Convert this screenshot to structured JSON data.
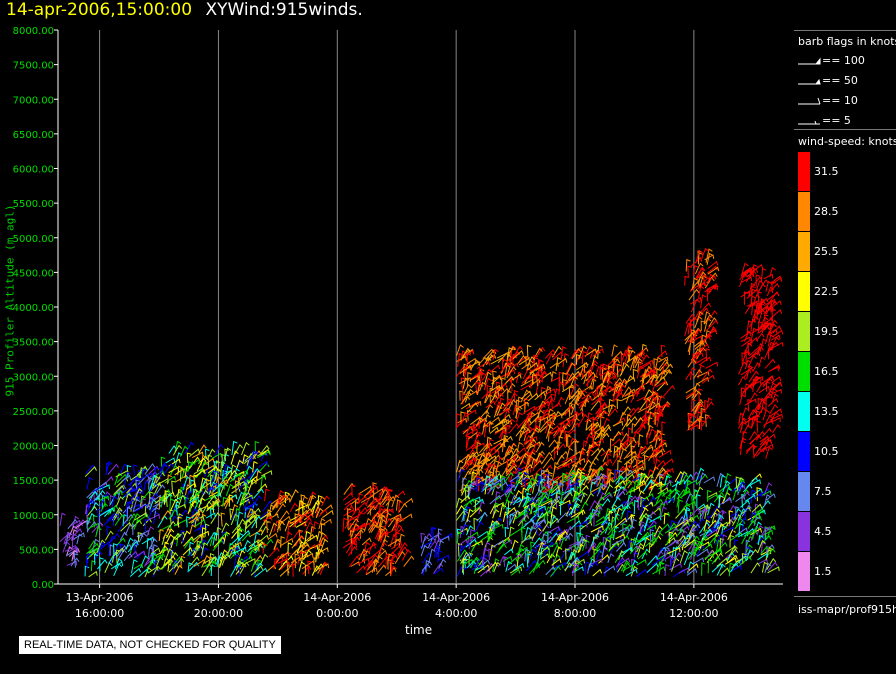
{
  "header": {
    "datetime": "14-apr-2006,15:00:00",
    "product": "XYWind:915winds."
  },
  "notice": "REAL-TIME DATA, NOT CHECKED FOR QUALITY",
  "source_label": "iss-mapr/prof915h",
  "chart_data": {
    "type": "scatter",
    "title": "XYWind:915winds.",
    "ylabel": "915 Profiler Altitude (m agl)",
    "xlabel": "time",
    "ylim": [
      0,
      8000
    ],
    "y_ticks": [
      "0.00",
      "500.00",
      "1000.00",
      "1500.00",
      "2000.00",
      "2500.00",
      "3000.00",
      "3500.00",
      "4000.00",
      "4500.00",
      "5000.00",
      "5500.00",
      "6000.00",
      "6500.00",
      "7000.00",
      "7500.00",
      "8000.00"
    ],
    "x_range": [
      "2006-04-13 14:36",
      "2006-04-14 15:00"
    ],
    "x_ticks": [
      {
        "time": "2006-04-13 16:00",
        "line1": "13-Apr-2006",
        "line2": "16:00:00"
      },
      {
        "time": "2006-04-13 20:00",
        "line1": "13-Apr-2006",
        "line2": "20:00:00"
      },
      {
        "time": "2006-04-14 00:00",
        "line1": "14-Apr-2006",
        "line2": "0:00:00"
      },
      {
        "time": "2006-04-14 04:00",
        "line1": "14-Apr-2006",
        "line2": "4:00:00"
      },
      {
        "time": "2006-04-14 08:00",
        "line1": "14-Apr-2006",
        "line2": "8:00:00"
      },
      {
        "time": "2006-04-14 12:00",
        "line1": "14-Apr-2006",
        "line2": "12:00:00"
      }
    ],
    "grid": "vertical at x ticks",
    "barb_legend": {
      "title": "barb flags in knots",
      "items": [
        "== 100",
        "== 50",
        "== 10",
        "== 5"
      ]
    },
    "colorbar": {
      "title": "wind-speed: knots",
      "levels": [
        {
          "value": "31.5",
          "color": "#ff0000"
        },
        {
          "value": "28.5",
          "color": "#ff8800"
        },
        {
          "value": "25.5",
          "color": "#ffaa00"
        },
        {
          "value": "22.5",
          "color": "#ffff00"
        },
        {
          "value": "19.5",
          "color": "#aaee22"
        },
        {
          "value": "16.5",
          "color": "#00dd00"
        },
        {
          "value": "13.5",
          "color": "#00ffee"
        },
        {
          "value": "10.5",
          "color": "#0000ff"
        },
        {
          "value": "7.5",
          "color": "#6688ee"
        },
        {
          "value": "4.5",
          "color": "#8833dd"
        },
        {
          "value": "1.5",
          "color": "#ee88ee"
        }
      ]
    },
    "clusters": [
      {
        "start": "2006-04-13 14:40",
        "end": "2006-04-13 15:15",
        "alt_min": 150,
        "alt_max": 900,
        "speeds": [
          "4.5",
          "7.5",
          "1.5"
        ]
      },
      {
        "start": "2006-04-13 15:30",
        "end": "2006-04-13 18:00",
        "alt_min": 100,
        "alt_max": 1600,
        "speeds": [
          "10.5",
          "13.5",
          "16.5",
          "7.5",
          "19.5",
          "4.5"
        ]
      },
      {
        "start": "2006-04-13 18:00",
        "end": "2006-04-13 21:30",
        "alt_min": 100,
        "alt_max": 1900,
        "speeds": [
          "19.5",
          "22.5",
          "25.5",
          "16.5",
          "13.5",
          "10.5"
        ]
      },
      {
        "start": "2006-04-13 21:30",
        "end": "2006-04-13 23:30",
        "alt_min": 100,
        "alt_max": 1200,
        "speeds": [
          "28.5",
          "25.5",
          "31.5",
          "22.5"
        ]
      },
      {
        "start": "2006-04-14 00:10",
        "end": "2006-04-14 02:15",
        "alt_min": 100,
        "alt_max": 1300,
        "speeds": [
          "31.5",
          "28.5"
        ]
      },
      {
        "start": "2006-04-14 02:45",
        "end": "2006-04-14 03:30",
        "alt_min": 100,
        "alt_max": 700,
        "speeds": [
          "10.5",
          "7.5",
          "4.5"
        ]
      },
      {
        "start": "2006-04-14 04:00",
        "end": "2006-04-14 11:00",
        "alt_min": 1300,
        "alt_max": 3300,
        "speeds": [
          "31.5",
          "28.5",
          "25.5"
        ]
      },
      {
        "start": "2006-04-14 04:00",
        "end": "2006-04-14 14:30",
        "alt_min": 100,
        "alt_max": 1500,
        "speeds": [
          "16.5",
          "13.5",
          "19.5",
          "10.5",
          "22.5",
          "7.5",
          "4.5"
        ]
      },
      {
        "start": "2006-04-14 11:40",
        "end": "2006-04-14 12:30",
        "alt_min": 2200,
        "alt_max": 4700,
        "speeds": [
          "31.5",
          "28.5"
        ]
      },
      {
        "start": "2006-04-14 13:30",
        "end": "2006-04-14 14:40",
        "alt_min": 1800,
        "alt_max": 4500,
        "speeds": [
          "31.5"
        ]
      }
    ]
  }
}
